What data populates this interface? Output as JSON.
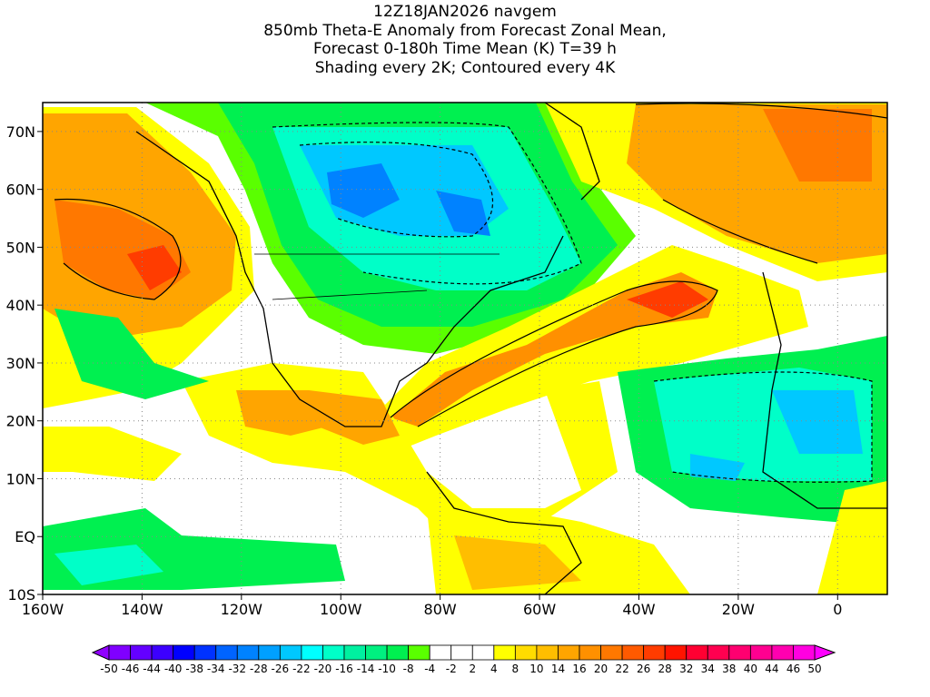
{
  "title": {
    "line1": "12Z18JAN2026 navgem",
    "line2": "850mb Theta-E Anomaly from Forecast Zonal Mean,",
    "line3": "Forecast 0-180h Time Mean (K) T=39 h",
    "line4": "Shading every 2K; Contoured every 4K"
  },
  "map": {
    "lon_range": [
      -160,
      10
    ],
    "lat_range": [
      -10,
      75
    ],
    "lon_ticks": [
      {
        "v": -160,
        "label": "160W"
      },
      {
        "v": -140,
        "label": "140W"
      },
      {
        "v": -120,
        "label": "120W"
      },
      {
        "v": -100,
        "label": "100W"
      },
      {
        "v": -80,
        "label": "80W"
      },
      {
        "v": -60,
        "label": "60W"
      },
      {
        "v": -40,
        "label": "40W"
      },
      {
        "v": -20,
        "label": "20W"
      },
      {
        "v": 0,
        "label": "0"
      }
    ],
    "lat_ticks": [
      {
        "v": 70,
        "label": "70N"
      },
      {
        "v": 60,
        "label": "60N"
      },
      {
        "v": 50,
        "label": "50N"
      },
      {
        "v": 40,
        "label": "40N"
      },
      {
        "v": 30,
        "label": "30N"
      },
      {
        "v": 20,
        "label": "20N"
      },
      {
        "v": 10,
        "label": "10N"
      },
      {
        "v": 0,
        "label": "EQ"
      },
      {
        "v": -10,
        "label": "10S"
      }
    ]
  },
  "colorbar": {
    "labels": [
      "-50",
      "-46",
      "-44",
      "-40",
      "-38",
      "-34",
      "-32",
      "-28",
      "-26",
      "-22",
      "-20",
      "-16",
      "-14",
      "-10",
      "-8",
      "-4",
      "-2",
      "2",
      "4",
      "8",
      "10",
      "14",
      "16",
      "20",
      "22",
      "26",
      "28",
      "32",
      "34",
      "38",
      "40",
      "44",
      "46",
      "50"
    ],
    "colors": [
      "#8000ff",
      "#6400ff",
      "#3c00ff",
      "#0000ff",
      "#0032ff",
      "#0064ff",
      "#0082ff",
      "#00a0ff",
      "#00c8ff",
      "#00ffff",
      "#00ffc8",
      "#00f0a0",
      "#00f080",
      "#00f050",
      "#5aff00",
      "#ffffff",
      "#ffffff",
      "#ffffff",
      "#ffff00",
      "#ffdc00",
      "#ffbe00",
      "#ffa500",
      "#ff9000",
      "#ff7800",
      "#ff5a00",
      "#ff3c00",
      "#ff1400",
      "#ff0032",
      "#ff0050",
      "#ff0070",
      "#ff0090",
      "#ff00b0",
      "#ff00e0"
    ],
    "low_color": "#9000ff",
    "high_color": "#ff00ff"
  }
}
